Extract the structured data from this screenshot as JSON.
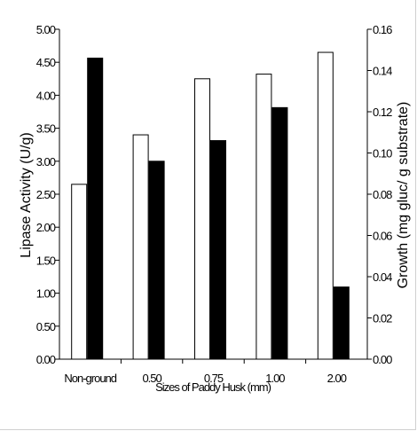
{
  "chart_data": {
    "type": "bar",
    "xlabel": "Sizes of Paddy Husk (mm)",
    "ylabel": "Lipase Activity (U/g)",
    "y2label": "Growth (mg gluc/ g substrate)",
    "categories": [
      "Non-ground",
      "0.50",
      "0.75",
      "1.00",
      "2.00"
    ],
    "series": [
      {
        "axis": "left",
        "fill": "#ffffff",
        "values": [
          2.65,
          3.4,
          4.25,
          4.32,
          4.65
        ]
      },
      {
        "axis": "right",
        "fill": "#000000",
        "values": [
          0.146,
          0.096,
          0.106,
          0.122,
          0.035
        ]
      }
    ],
    "ylim": [
      0,
      5.0
    ],
    "y2lim": [
      0,
      0.16
    ],
    "yticks": [
      "0.00",
      "0.50",
      "1.00",
      "1.50",
      "2.00",
      "2.50",
      "3.00",
      "3.50",
      "4.00",
      "4.50",
      "5.00"
    ],
    "y2ticks": [
      "0.00",
      "0.02",
      "0.04",
      "0.06",
      "0.08",
      "0.10",
      "0.12",
      "0.14",
      "0.16"
    ],
    "grid": false,
    "legend": "none"
  }
}
